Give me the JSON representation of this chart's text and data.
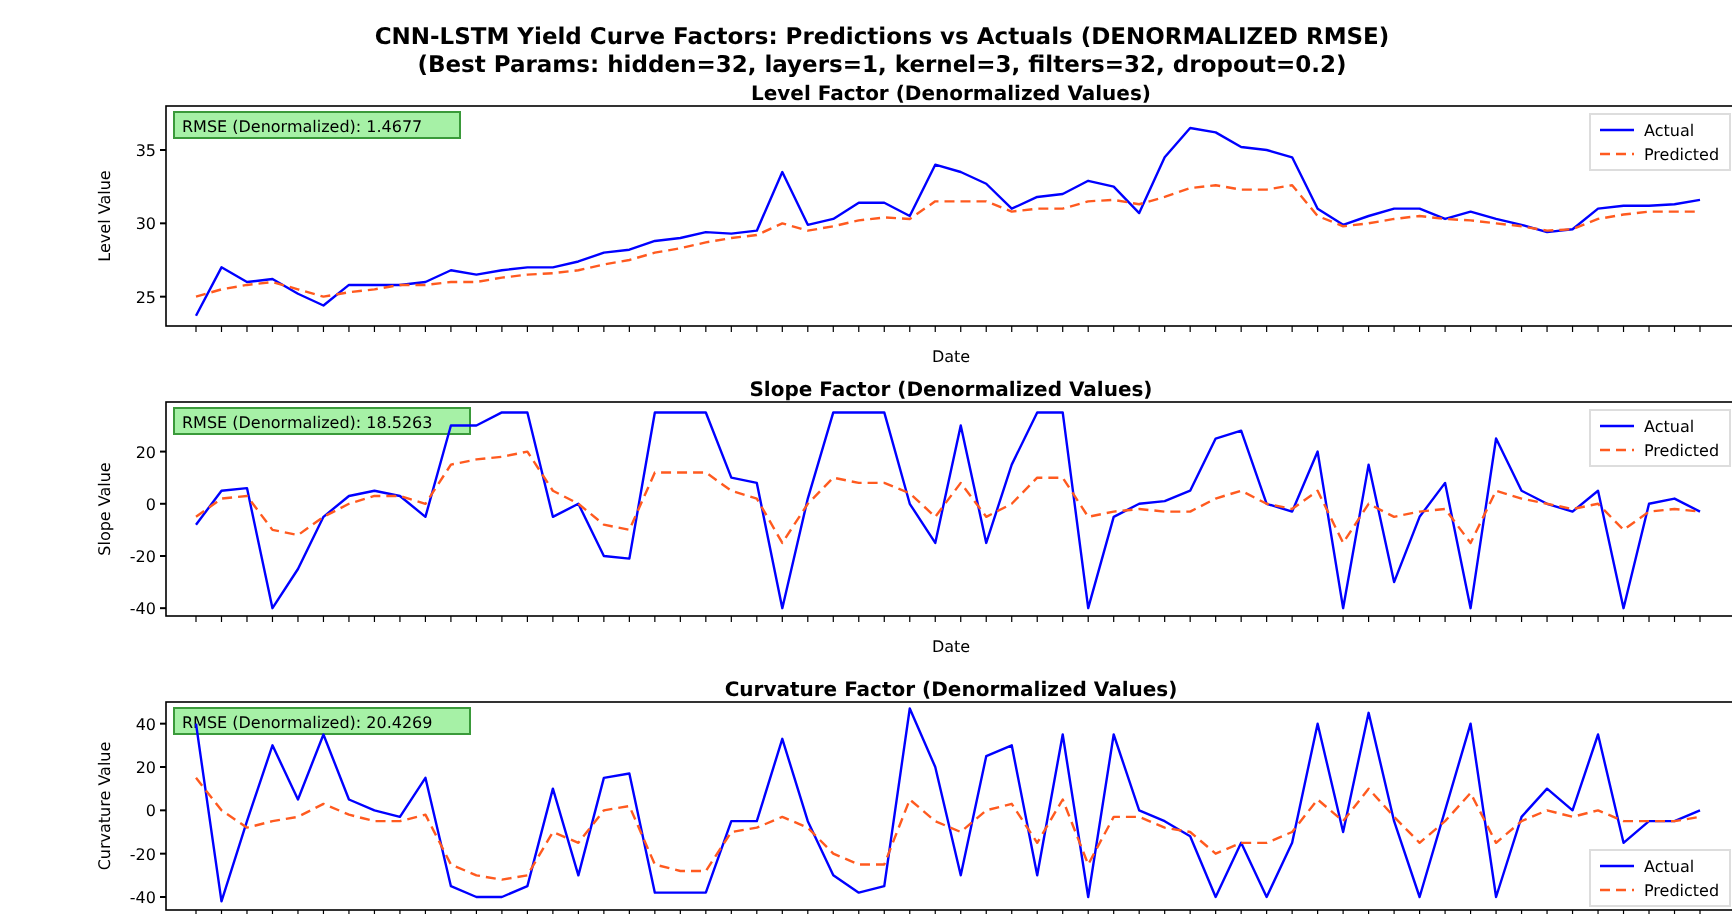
{
  "chart_data": [
    {
      "type": "other",
      "title": "CNN-LSTM Yield Curve Factors: Predictions vs Actuals (DENORMALIZED RMSE)",
      "subtitle": "(Best Params: hidden=32, layers=1, kernel=3, filters=32, dropout=0.2)"
    },
    {
      "type": "line",
      "title": "Level Factor (Denormalized Values)",
      "xlabel": "Date",
      "ylabel": "Level Value",
      "categories": [
        null,
        null,
        null,
        null,
        null,
        null,
        null,
        null,
        null,
        null,
        null,
        null,
        null,
        null,
        null,
        null,
        null,
        null,
        null,
        null,
        null,
        null,
        null,
        null,
        null,
        null,
        null,
        null,
        null,
        null,
        null,
        null,
        null,
        null,
        null,
        null,
        null,
        null,
        null,
        null,
        null,
        null,
        null,
        null,
        null,
        null,
        null,
        null,
        null,
        null,
        null,
        null,
        null,
        null,
        null,
        null,
        null,
        null,
        null,
        null
      ],
      "ylim": [
        23,
        38
      ],
      "yticks": [
        25,
        30,
        35
      ],
      "tick_labels": "y",
      "legend": "top right",
      "annotations": [
        "RMSE (Denormalized): 1.4677"
      ],
      "series": [
        {
          "name": "Actual",
          "color": "#0000ff",
          "line_style": "solid",
          "values": [
            23.7,
            27,
            26,
            26.2,
            25.2,
            24.4,
            25.8,
            25.8,
            25.8,
            26,
            26.8,
            26.5,
            26.8,
            27,
            27,
            27.4,
            28,
            28.2,
            28.8,
            29,
            29.4,
            29.3,
            29.5,
            33.5,
            29.9,
            30.3,
            31.4,
            31.4,
            30.5,
            34,
            33.5,
            32.7,
            31,
            31.8,
            32,
            32.9,
            32.5,
            30.7,
            34.5,
            36.5,
            36.2,
            35.2,
            35,
            34.5,
            31,
            29.9,
            30.5,
            31,
            31,
            30.3,
            30.8,
            30.3,
            29.9,
            29.4,
            29.6,
            31,
            31.2,
            31.2,
            31.3,
            31.6
          ]
        },
        {
          "name": "Predicted",
          "color": "#ff5a1f",
          "line_style": "dashed",
          "values": [
            25,
            25.5,
            25.8,
            26,
            25.5,
            25,
            25.3,
            25.5,
            25.8,
            25.8,
            26,
            26,
            26.3,
            26.5,
            26.6,
            26.8,
            27.2,
            27.5,
            28,
            28.3,
            28.7,
            29,
            29.2,
            30,
            29.5,
            29.8,
            30.2,
            30.4,
            30.3,
            31.5,
            31.5,
            31.5,
            30.8,
            31,
            31,
            31.5,
            31.6,
            31.3,
            31.8,
            32.4,
            32.6,
            32.3,
            32.3,
            32.6,
            30.5,
            29.8,
            30,
            30.3,
            30.5,
            30.3,
            30.2,
            30,
            29.8,
            29.5,
            29.6,
            30.3,
            30.6,
            30.8,
            30.8,
            30.8
          ]
        }
      ]
    },
    {
      "type": "line",
      "title": "Slope Factor (Denormalized Values)",
      "xlabel": "Date",
      "ylabel": "Slope Value",
      "categories": [
        null,
        null,
        null,
        null,
        null,
        null,
        null,
        null,
        null,
        null,
        null,
        null,
        null,
        null,
        null,
        null,
        null,
        null,
        null,
        null,
        null,
        null,
        null,
        null,
        null,
        null,
        null,
        null,
        null,
        null,
        null,
        null,
        null,
        null,
        null,
        null,
        null,
        null,
        null,
        null,
        null,
        null,
        null,
        null,
        null,
        null,
        null,
        null,
        null,
        null,
        null,
        null,
        null,
        null,
        null,
        null,
        null,
        null,
        null,
        null
      ],
      "ylim": [
        -43,
        39
      ],
      "yticks": [
        -40,
        -20,
        0,
        20
      ],
      "tick_labels": "y",
      "legend": "top right",
      "annotations": [
        "RMSE (Denormalized): 18.5263"
      ],
      "series": [
        {
          "name": "Actual",
          "color": "#0000ff",
          "line_style": "solid",
          "values": [
            -8,
            5,
            6,
            -40,
            -25,
            -5,
            3,
            5,
            3,
            -5,
            30,
            30,
            35,
            35,
            -5,
            0,
            -20,
            -21,
            35,
            35,
            35,
            10,
            8,
            -40,
            2,
            35,
            35,
            35,
            0,
            -15,
            30,
            -15,
            15,
            35,
            35,
            -40,
            -5,
            0,
            1,
            5,
            25,
            28,
            0,
            -3,
            20,
            -40,
            15,
            -30,
            -5,
            8,
            -40,
            25,
            5,
            0,
            -3,
            5,
            -40,
            0,
            2,
            -3
          ]
        },
        {
          "name": "Predicted",
          "color": "#ff5a1f",
          "line_style": "dashed",
          "values": [
            -5,
            2,
            3,
            -10,
            -12,
            -5,
            0,
            3,
            3,
            0,
            15,
            17,
            18,
            20,
            5,
            0,
            -8,
            -10,
            12,
            12,
            12,
            5,
            2,
            -15,
            0,
            10,
            8,
            8,
            4,
            -5,
            8,
            -5,
            0,
            10,
            10,
            -5,
            -3,
            -2,
            -3,
            -3,
            2,
            5,
            0,
            -2,
            5,
            -15,
            0,
            -5,
            -3,
            -2,
            -15,
            5,
            2,
            0,
            -2,
            0,
            -10,
            -3,
            -2,
            -3
          ]
        }
      ]
    },
    {
      "type": "line",
      "title": "Curvature Factor (Denormalized Values)",
      "ylabel": "Curvature Value",
      "categories": [
        null,
        null,
        null,
        null,
        null,
        null,
        null,
        null,
        null,
        null,
        null,
        null,
        null,
        null,
        null,
        null,
        null,
        null,
        null,
        null,
        null,
        null,
        null,
        null,
        null,
        null,
        null,
        null,
        null,
        null,
        null,
        null,
        null,
        null,
        null,
        null,
        null,
        null,
        null,
        null,
        null,
        null,
        null,
        null,
        null,
        null,
        null,
        null,
        null,
        null,
        null,
        null,
        null,
        null,
        null,
        null,
        null,
        null,
        null,
        null
      ],
      "ylim": [
        -46,
        50
      ],
      "yticks": [
        -40,
        -20,
        0,
        20,
        40
      ],
      "tick_labels": "y",
      "legend": "bottom right",
      "annotations": [
        "RMSE (Denormalized): 20.4269"
      ],
      "series": [
        {
          "name": "Actual",
          "color": "#0000ff",
          "line_style": "solid",
          "values": [
            40,
            -42,
            -5,
            30,
            5,
            35,
            5,
            0,
            -3,
            15,
            -35,
            -40,
            -40,
            -35,
            10,
            -30,
            15,
            17,
            -38,
            -38,
            -38,
            -5,
            -5,
            33,
            -5,
            -30,
            -38,
            -35,
            47,
            20,
            -30,
            25,
            30,
            -30,
            35,
            -40,
            35,
            0,
            -5,
            -12,
            -40,
            -15,
            -40,
            -15,
            40,
            -10,
            45,
            -5,
            -40,
            0,
            40,
            -40,
            -3,
            10,
            0,
            35,
            -15,
            -5,
            -5,
            0
          ]
        },
        {
          "name": "Predicted",
          "color": "#ff5a1f",
          "line_style": "dashed",
          "values": [
            15,
            0,
            -8,
            -5,
            -3,
            3,
            -2,
            -5,
            -5,
            -2,
            -25,
            -30,
            -32,
            -30,
            -10,
            -15,
            0,
            2,
            -25,
            -28,
            -28,
            -10,
            -8,
            -3,
            -8,
            -20,
            -25,
            -25,
            5,
            -5,
            -10,
            0,
            3,
            -15,
            5,
            -25,
            -3,
            -3,
            -8,
            -10,
            -20,
            -15,
            -15,
            -10,
            5,
            -5,
            10,
            -3,
            -15,
            -5,
            8,
            -15,
            -5,
            0,
            -3,
            0,
            -5,
            -5,
            -5,
            -3
          ]
        }
      ]
    }
  ]
}
